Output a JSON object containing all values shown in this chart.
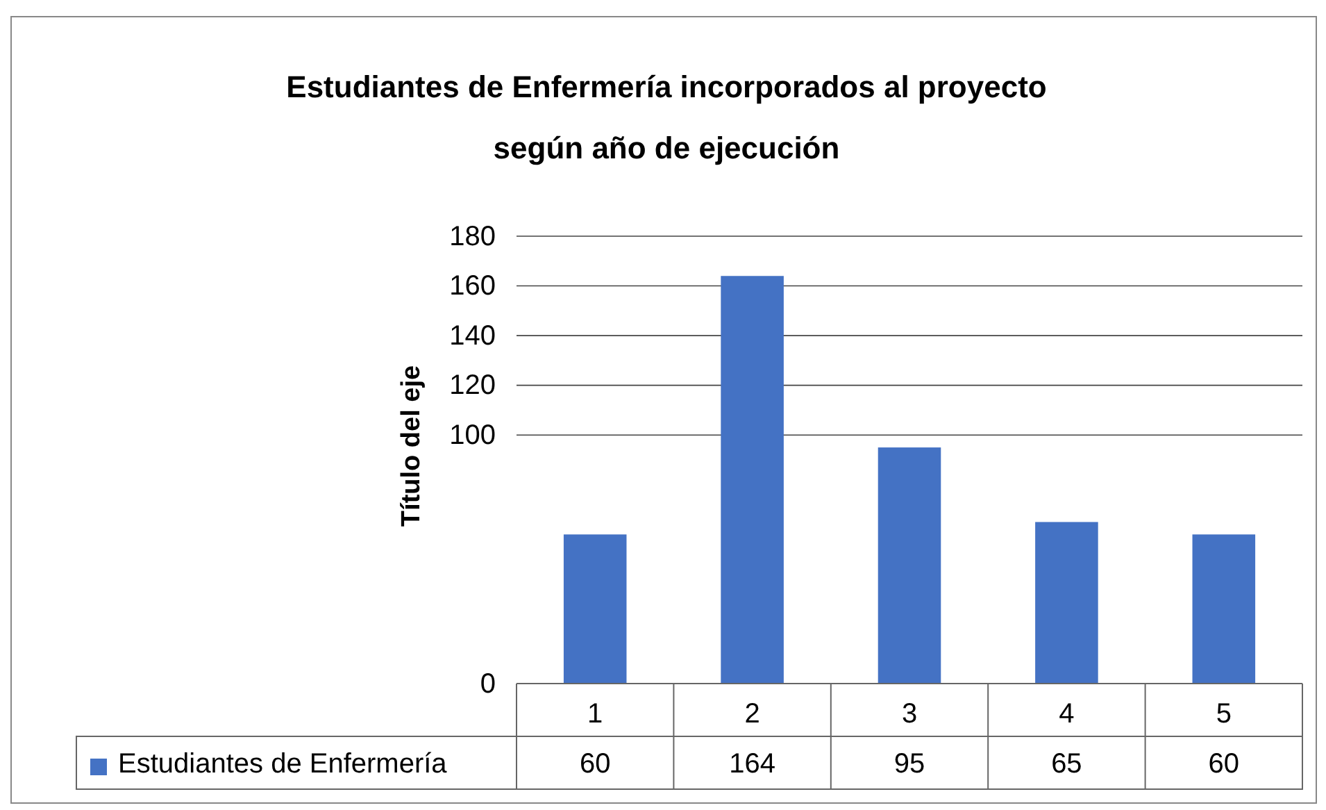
{
  "chart_data": {
    "type": "bar",
    "title": "Estudiantes de Enfermería  incorporados al proyecto según año de ejecución",
    "ylabel": "Título del eje",
    "categories": [
      "1",
      "2",
      "3",
      "4",
      "5"
    ],
    "series": [
      {
        "name": "Estudiantes de Enfermería",
        "color": "#4472c4",
        "values": [
          60,
          164,
          95,
          65,
          60
        ]
      }
    ],
    "ylim": [
      0,
      180
    ],
    "yticks": [
      0,
      100,
      120,
      140,
      160,
      180
    ],
    "grid": "y",
    "data_labels": true,
    "legend": "bottom"
  }
}
